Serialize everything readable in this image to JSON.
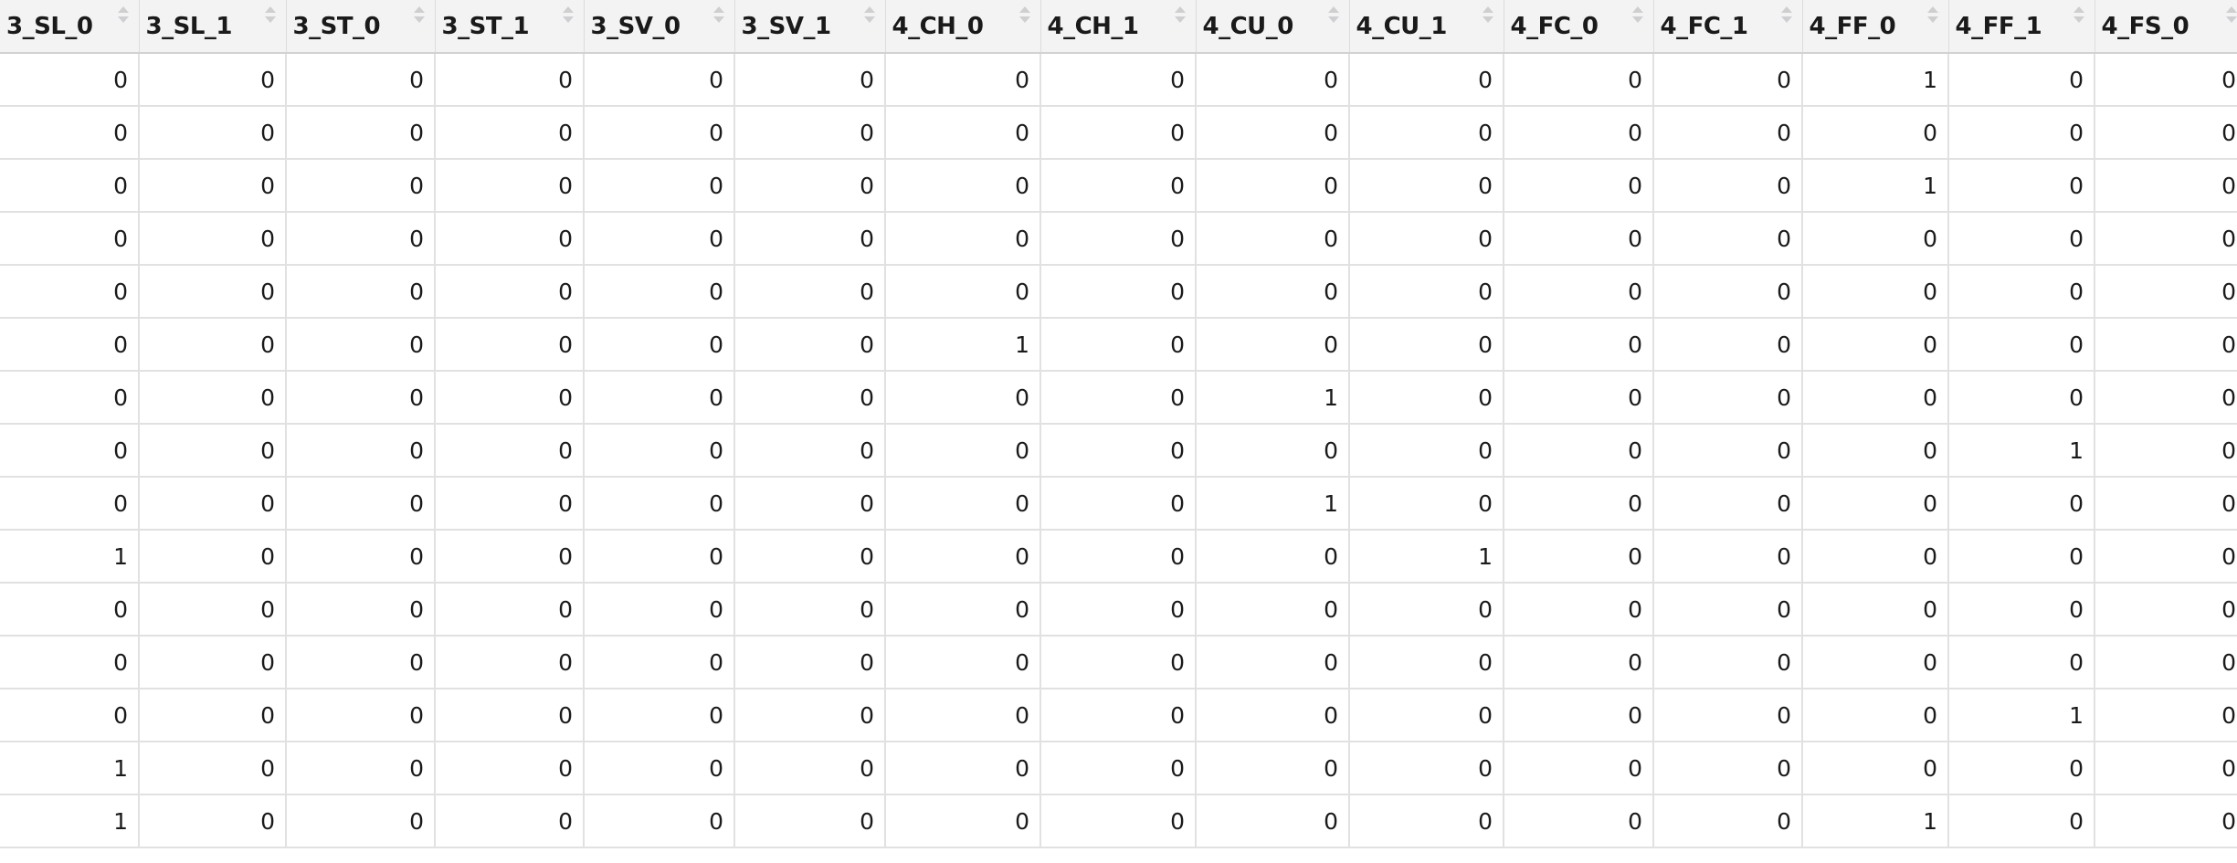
{
  "table": {
    "columns": [
      "3_SL_0",
      "3_SL_1",
      "3_ST_0",
      "3_ST_1",
      "3_SV_0",
      "3_SV_1",
      "4_CH_0",
      "4_CH_1",
      "4_CU_0",
      "4_CU_1",
      "4_FC_0",
      "4_FC_1",
      "4_FF_0",
      "4_FF_1",
      "4_FS_0"
    ],
    "header_icon": "sort-arrows-icon",
    "rows": [
      [
        "0",
        "0",
        "0",
        "0",
        "0",
        "0",
        "0",
        "0",
        "0",
        "0",
        "0",
        "0",
        "1",
        "0",
        "0"
      ],
      [
        "0",
        "0",
        "0",
        "0",
        "0",
        "0",
        "0",
        "0",
        "0",
        "0",
        "0",
        "0",
        "0",
        "0",
        "0"
      ],
      [
        "0",
        "0",
        "0",
        "0",
        "0",
        "0",
        "0",
        "0",
        "0",
        "0",
        "0",
        "0",
        "1",
        "0",
        "0"
      ],
      [
        "0",
        "0",
        "0",
        "0",
        "0",
        "0",
        "0",
        "0",
        "0",
        "0",
        "0",
        "0",
        "0",
        "0",
        "0"
      ],
      [
        "0",
        "0",
        "0",
        "0",
        "0",
        "0",
        "0",
        "0",
        "0",
        "0",
        "0",
        "0",
        "0",
        "0",
        "0"
      ],
      [
        "0",
        "0",
        "0",
        "0",
        "0",
        "0",
        "1",
        "0",
        "0",
        "0",
        "0",
        "0",
        "0",
        "0",
        "0"
      ],
      [
        "0",
        "0",
        "0",
        "0",
        "0",
        "0",
        "0",
        "0",
        "1",
        "0",
        "0",
        "0",
        "0",
        "0",
        "0"
      ],
      [
        "0",
        "0",
        "0",
        "0",
        "0",
        "0",
        "0",
        "0",
        "0",
        "0",
        "0",
        "0",
        "0",
        "1",
        "0"
      ],
      [
        "0",
        "0",
        "0",
        "0",
        "0",
        "0",
        "0",
        "0",
        "1",
        "0",
        "0",
        "0",
        "0",
        "0",
        "0"
      ],
      [
        "1",
        "0",
        "0",
        "0",
        "0",
        "0",
        "0",
        "0",
        "0",
        "1",
        "0",
        "0",
        "0",
        "0",
        "0"
      ],
      [
        "0",
        "0",
        "0",
        "0",
        "0",
        "0",
        "0",
        "0",
        "0",
        "0",
        "0",
        "0",
        "0",
        "0",
        "0"
      ],
      [
        "0",
        "0",
        "0",
        "0",
        "0",
        "0",
        "0",
        "0",
        "0",
        "0",
        "0",
        "0",
        "0",
        "0",
        "0"
      ],
      [
        "0",
        "0",
        "0",
        "0",
        "0",
        "0",
        "0",
        "0",
        "0",
        "0",
        "0",
        "0",
        "0",
        "1",
        "0"
      ],
      [
        "1",
        "0",
        "0",
        "0",
        "0",
        "0",
        "0",
        "0",
        "0",
        "0",
        "0",
        "0",
        "0",
        "0",
        "0"
      ],
      [
        "1",
        "0",
        "0",
        "0",
        "0",
        "0",
        "0",
        "0",
        "0",
        "0",
        "0",
        "0",
        "1",
        "0",
        "0"
      ]
    ]
  }
}
